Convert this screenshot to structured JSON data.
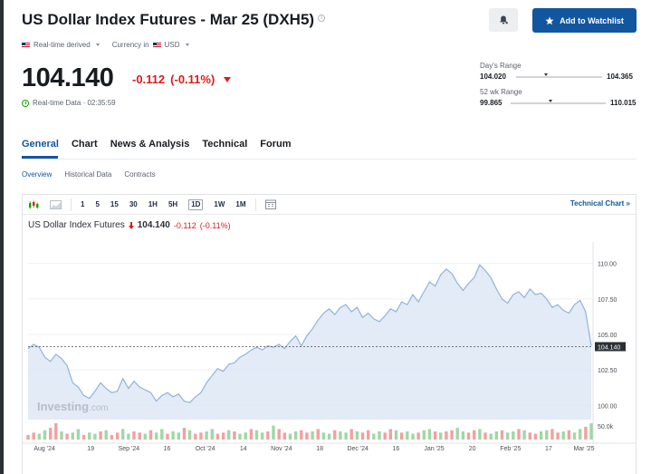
{
  "header": {
    "title": "US Dollar Index Futures - Mar 25 (DXH5)",
    "realtime_label": "Real-time derived",
    "currency_label": "Currency in",
    "currency_value": "USD",
    "watchlist_label": "Add to Watchlist"
  },
  "quote": {
    "price": "104.140",
    "change": "-0.112",
    "change_pct": "(-0.11%)",
    "status": "Real-time Data · 02:35:59"
  },
  "ranges": {
    "day_label": "Day's Range",
    "day_low": "104.020",
    "day_high": "104.365",
    "day_position": 0.35,
    "wk52_label": "52 wk Range",
    "wk52_low": "99.865",
    "wk52_high": "110.015",
    "wk52_position": 0.42
  },
  "tabs": [
    {
      "label": "General"
    },
    {
      "label": "Chart"
    },
    {
      "label": "News & Analysis"
    },
    {
      "label": "Technical"
    },
    {
      "label": "Forum"
    }
  ],
  "subtabs": [
    {
      "label": "Overview"
    },
    {
      "label": "Historical Data"
    },
    {
      "label": "Contracts"
    }
  ],
  "chart_toolbar": {
    "intervals": [
      "1",
      "5",
      "15",
      "30",
      "1H",
      "5H",
      "1D",
      "1W",
      "1M"
    ],
    "selected": "1D",
    "technical_link": "Technical Chart"
  },
  "chart_legend": {
    "name": "US Dollar Index Futures",
    "price": "104.140",
    "change": "-0.112",
    "change_pct": "(-0.11%)"
  },
  "watermark": "Investing.com",
  "colors": {
    "accent": "#1256a0",
    "negative": "#d91e18",
    "positive": "#0ea600",
    "line": "#8fb3dc",
    "area": "#dde8f4"
  },
  "chart_data": {
    "type": "area",
    "ylim": [
      99.0,
      111.0
    ],
    "yticks": [
      "110.00",
      "107.50",
      "105.00",
      "102.50",
      "100.00"
    ],
    "ytick_values": [
      110.0,
      107.5,
      105.0,
      102.5,
      100.0
    ],
    "last_price_label": "104.140",
    "last_price": 104.14,
    "volume_label": "50.0k",
    "xticks": [
      "Aug '24",
      "19",
      "Sep '24",
      "16",
      "Oct '24",
      "14",
      "Nov '24",
      "18",
      "Dec '24",
      "16",
      "Jan '25",
      "20",
      "Feb '25",
      "17",
      "Mar '25"
    ],
    "xtick_positions": [
      0.03,
      0.115,
      0.185,
      0.255,
      0.325,
      0.395,
      0.465,
      0.535,
      0.605,
      0.675,
      0.745,
      0.815,
      0.885,
      0.955,
      1.02
    ],
    "values": [
      104.0,
      104.3,
      104.1,
      103.4,
      103.1,
      103.6,
      103.3,
      102.8,
      101.6,
      101.3,
      100.7,
      100.5,
      101.0,
      101.6,
      101.2,
      100.9,
      101.0,
      101.9,
      101.2,
      101.7,
      101.3,
      101.1,
      100.9,
      100.3,
      100.7,
      100.9,
      100.6,
      100.8,
      100.3,
      100.2,
      100.6,
      100.9,
      101.6,
      102.1,
      102.6,
      102.4,
      102.9,
      103.0,
      103.4,
      103.6,
      103.9,
      104.1,
      103.9,
      104.2,
      104.1,
      104.3,
      104.0,
      104.5,
      104.9,
      104.2,
      104.9,
      105.4,
      106.0,
      106.5,
      106.8,
      106.4,
      106.9,
      107.1,
      106.6,
      106.9,
      106.2,
      106.5,
      106.1,
      105.9,
      106.3,
      106.8,
      106.6,
      107.3,
      107.1,
      107.8,
      107.3,
      108.0,
      108.7,
      108.4,
      109.2,
      109.6,
      109.3,
      108.6,
      108.1,
      108.6,
      109.0,
      109.9,
      109.5,
      109.0,
      108.2,
      107.5,
      107.2,
      107.8,
      108.0,
      107.6,
      108.2,
      107.8,
      107.9,
      107.5,
      106.9,
      107.1,
      106.7,
      106.5,
      107.1,
      107.4,
      106.6,
      104.2
    ],
    "volumes": [
      4,
      6,
      5,
      8,
      10,
      14,
      7,
      5,
      6,
      9,
      4,
      6,
      5,
      7,
      8,
      4,
      6,
      9,
      5,
      7,
      6,
      5,
      8,
      6,
      9,
      5,
      7,
      6,
      10,
      8,
      5,
      6,
      7,
      9,
      5,
      6,
      8,
      7,
      5,
      6,
      9,
      8,
      6,
      7,
      12,
      9,
      6,
      5,
      7,
      8,
      6,
      7,
      9,
      6,
      5,
      8,
      7,
      6,
      9,
      7,
      6,
      8,
      5,
      7,
      6,
      9,
      8,
      6,
      7,
      5,
      6,
      8,
      9,
      7,
      6,
      7,
      8,
      10,
      7,
      6,
      8,
      9,
      6,
      5,
      7,
      8,
      6,
      7,
      9,
      8,
      6,
      5,
      7,
      8,
      9,
      6,
      7,
      8,
      6,
      9,
      11,
      14
    ],
    "volume_colors": "alternating"
  }
}
